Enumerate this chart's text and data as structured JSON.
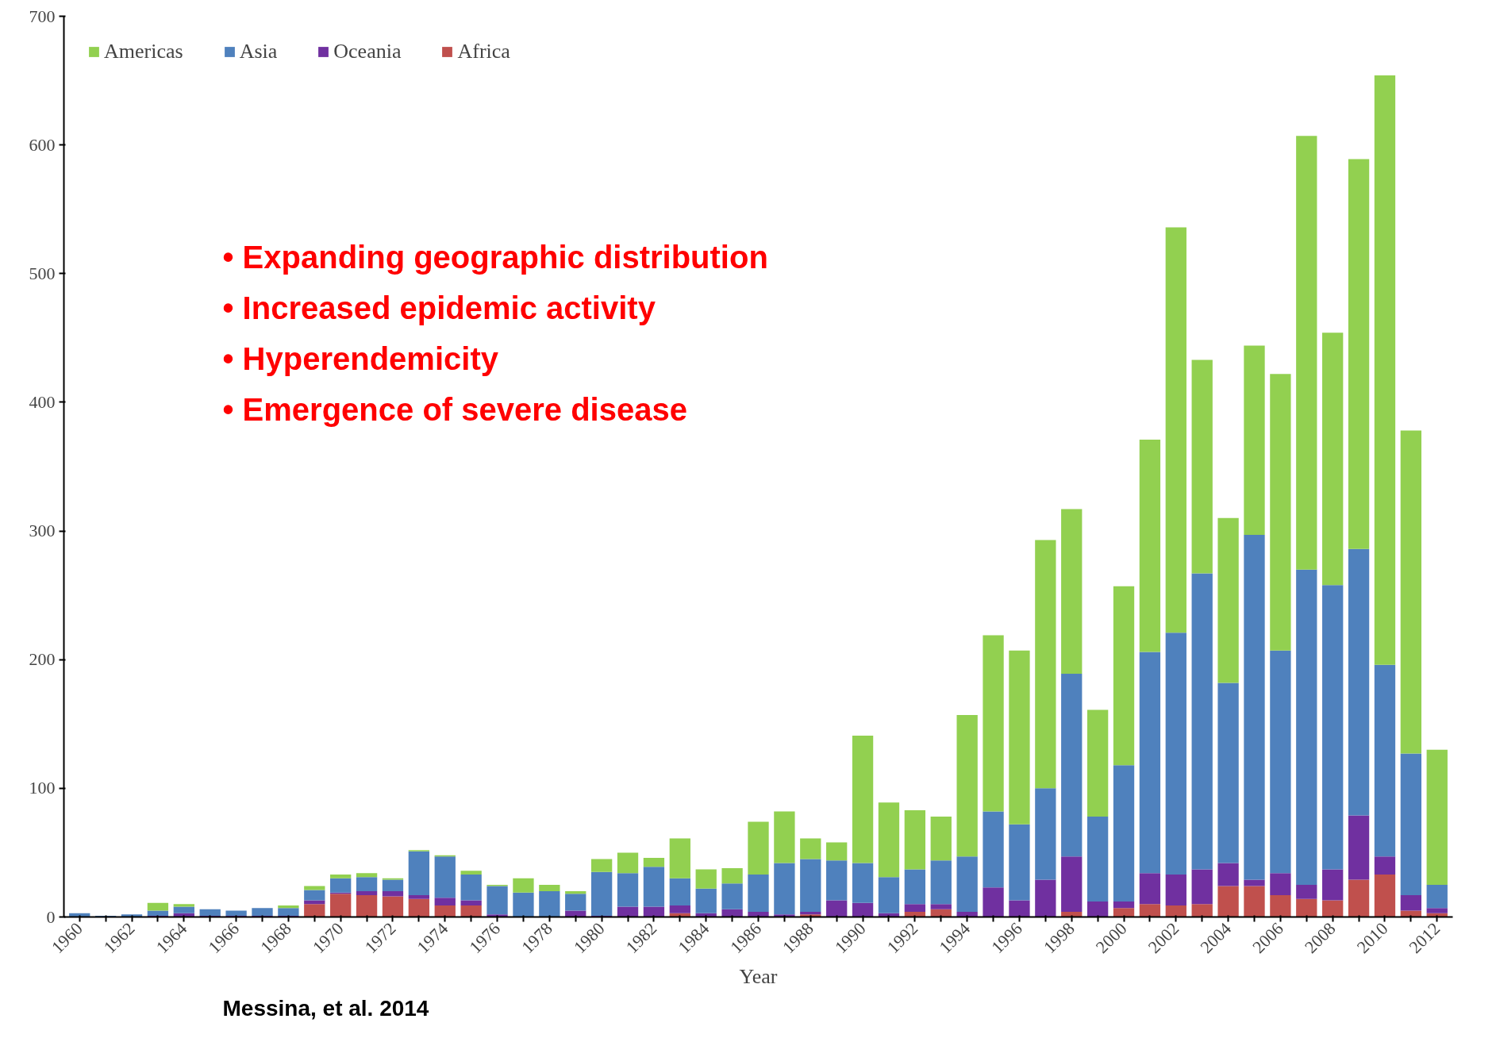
{
  "chart_data": {
    "type": "bar",
    "stacked": true,
    "xlabel": "Year",
    "categories": [
      "1960",
      null,
      "1962",
      null,
      "1964",
      null,
      "1966",
      null,
      "1968",
      null,
      "1970",
      null,
      "1972",
      null,
      "1974",
      null,
      "1976",
      null,
      "1978",
      null,
      "1980",
      null,
      "1982",
      null,
      "1984",
      null,
      "1986",
      null,
      "1988",
      null,
      "1990",
      null,
      "1992",
      null,
      "1994",
      null,
      "1996",
      null,
      "1998",
      null,
      "2000",
      null,
      "2002",
      null,
      "2004",
      null,
      "2006",
      null,
      "2008",
      null,
      "2010",
      null,
      "2012"
    ],
    "series": [
      {
        "name": "Africa",
        "color": "#c0504d",
        "values": [
          0,
          0,
          0,
          0,
          0,
          0,
          0,
          0,
          0,
          10,
          18,
          17,
          16,
          14,
          9,
          9,
          0,
          0,
          0,
          0,
          0,
          0,
          0,
          3,
          0,
          0,
          0,
          0,
          2,
          0,
          0,
          0,
          4,
          6,
          0,
          0,
          0,
          0,
          4,
          0,
          7,
          10,
          9,
          10,
          24,
          24,
          17,
          14,
          13,
          29,
          33,
          5,
          3
        ]
      },
      {
        "name": "Oceania",
        "color": "#7030a0",
        "values": [
          0,
          0,
          0,
          1,
          3,
          1,
          1,
          1,
          1,
          3,
          1,
          3,
          4,
          3,
          6,
          4,
          2,
          0,
          0,
          5,
          1,
          8,
          8,
          6,
          3,
          6,
          4,
          2,
          2,
          13,
          11,
          3,
          6,
          4,
          4,
          23,
          13,
          29,
          43,
          12,
          5,
          24,
          24,
          27,
          18,
          5,
          17,
          11,
          24,
          50,
          14,
          12,
          4
        ]
      },
      {
        "name": "Asia",
        "color": "#4f81bd",
        "values": [
          3,
          1,
          2,
          4,
          5,
          5,
          4,
          6,
          6,
          8,
          11,
          11,
          9,
          34,
          32,
          20,
          22,
          19,
          20,
          13,
          34,
          26,
          31,
          21,
          19,
          20,
          29,
          40,
          41,
          31,
          31,
          28,
          27,
          34,
          43,
          59,
          59,
          71,
          142,
          66,
          106,
          172,
          188,
          230,
          140,
          268,
          173,
          245,
          221,
          207,
          149,
          110,
          18
        ]
      },
      {
        "name": "Americas",
        "color": "#92d050",
        "values": [
          0,
          0,
          0,
          6,
          2,
          0,
          0,
          0,
          2,
          3,
          3,
          3,
          1,
          1,
          1,
          3,
          1,
          11,
          5,
          2,
          10,
          16,
          7,
          31,
          15,
          12,
          41,
          40,
          16,
          14,
          99,
          58,
          46,
          34,
          110,
          137,
          135,
          193,
          128,
          83,
          139,
          165,
          315,
          166,
          128,
          147,
          215,
          337,
          196,
          303,
          458,
          251,
          105
        ]
      }
    ],
    "ylim": [
      0,
      700
    ],
    "yticks": [
      0,
      100,
      200,
      300,
      400,
      500,
      600,
      700
    ],
    "grid": false,
    "legend": "top left",
    "annotations": [
      "• Expanding geographic distribution",
      "• Increased epidemic activity",
      "• Hyperendemicity",
      "• Emergence of severe disease",
      "Messina, et al. 2014"
    ]
  }
}
